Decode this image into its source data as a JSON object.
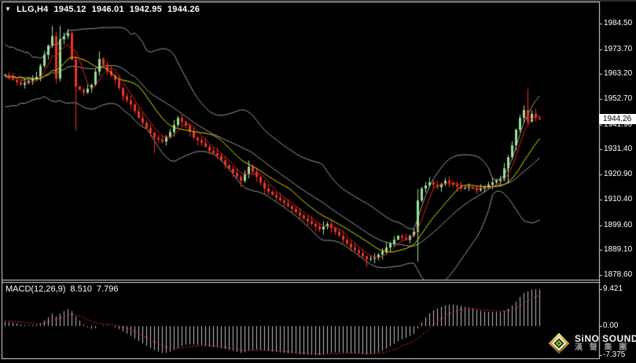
{
  "header": {
    "dropdown_icon": "▼",
    "symbol": "LLG,H4",
    "open": "1945.12",
    "high": "1946.01",
    "low": "1942.95",
    "close": "1944.26"
  },
  "price_axis": {
    "labels": [
      "1984.50",
      "1973.70",
      "1963.20",
      "1952.70",
      "1941.90",
      "1931.40",
      "1920.90",
      "1910.40",
      "1899.60",
      "1889.10",
      "1878.60"
    ],
    "current_price": "1944.26"
  },
  "macd_pane": {
    "indicator_label": "MACD(12,26,9)",
    "macd_value": "8.510",
    "signal_value": "7.796",
    "axis_labels": [
      "9.421",
      "0.00",
      "-7.375"
    ]
  },
  "watermark": {
    "brand": "SiNO SOUND",
    "brand_cn": "漢 聲 集 團"
  },
  "colors": {
    "background": "#000000",
    "frame": "#e0e0e0",
    "top_strip": "#2f2f2f",
    "text": "#ffffff",
    "bull": "#98e098",
    "bear": "#ef3322",
    "band": "#9a9a9a",
    "ma_fast": "#e02020",
    "ma_slow": "#e6dc00",
    "hist": "#bebebe",
    "signal": "#ff2a2a",
    "price_box_bg": "#ffffff",
    "price_box_text": "#000000"
  },
  "chart_data": {
    "type": "candlestick",
    "title": "LLG,H4",
    "legend_position": "none",
    "grid": false,
    "ohlc_header": {
      "open": 1945.12,
      "high": 1946.01,
      "low": 1942.95,
      "close": 1944.26
    },
    "price_ticks": [
      1984.5,
      1973.7,
      1963.2,
      1952.7,
      1941.9,
      1931.4,
      1920.9,
      1910.4,
      1899.6,
      1889.1,
      1878.6
    ],
    "price_range": [
      1878.6,
      1984.5
    ],
    "current_price": 1944.26,
    "indicators": {
      "bollinger": {
        "period": 20,
        "deviation": 2,
        "color": "#9a9a9a"
      },
      "ma_fast": {
        "period": 5,
        "color": "#e02020"
      },
      "ma_slow": {
        "period": 12,
        "color": "#e6dc00"
      },
      "macd": {
        "fast": 12,
        "slow": 26,
        "signal": 9,
        "macd_last": 8.51,
        "signal_last": 7.796,
        "axis_ticks": [
          9.421,
          0.0,
          -7.375
        ]
      }
    },
    "pre_history": [
      1955,
      1972,
      1958,
      1970,
      1952,
      1968,
      1955,
      1973,
      1957,
      1969,
      1953,
      1966,
      1958,
      1971,
      1954,
      1967,
      1960,
      1965,
      1958,
      1963
    ],
    "closes": [
      1963.0,
      1961.9,
      1960.8,
      1959.8,
      1958.7,
      1959.5,
      1960.4,
      1961.2,
      1962.0,
      1966.7,
      1971.3,
      1975.3,
      1979.2,
      1961.3,
      1977.9,
      1979.2,
      1980.5,
      1969.3,
      1958.0,
      1956.7,
      1955.4,
      1957.1,
      1958.7,
      1964.2,
      1969.6,
      1967.1,
      1964.6,
      1962.7,
      1960.7,
      1957.4,
      1954.0,
      1952.2,
      1950.4,
      1947.6,
      1944.8,
      1942.7,
      1940.5,
      1938.5,
      1936.5,
      1935.7,
      1934.8,
      1936.8,
      1938.8,
      1941.8,
      1944.8,
      1943.2,
      1941.5,
      1939.0,
      1936.5,
      1935.4,
      1934.2,
      1932.6,
      1930.9,
      1929.9,
      1928.9,
      1926.9,
      1924.9,
      1923.3,
      1921.6,
      1920.0,
      1918.3,
      1921.3,
      1924.2,
      1922.1,
      1919.9,
      1917.5,
      1915.0,
      1913.7,
      1912.3,
      1911.2,
      1910.0,
      1908.9,
      1907.7,
      1906.4,
      1905.0,
      1903.7,
      1902.4,
      1901.3,
      1900.1,
      1899.0,
      1897.8,
      1899.0,
      1900.1,
      1898.5,
      1896.8,
      1895.1,
      1893.4,
      1891.8,
      1890.1,
      1889.0,
      1887.8,
      1886.5,
      1885.2,
      1885.5,
      1885.8,
      1887.2,
      1888.5,
      1890.2,
      1891.8,
      1893.5,
      1895.1,
      1894.3,
      1893.4,
      1895.1,
      1896.8,
      1910.0,
      1915.0,
      1916.3,
      1917.6,
      1916.6,
      1915.6,
      1917.0,
      1918.3,
      1917.5,
      1916.6,
      1915.8,
      1915.0,
      1915.3,
      1915.6,
      1915.0,
      1914.3,
      1915.0,
      1915.6,
      1916.6,
      1917.6,
      1918.3,
      1918.9,
      1923.5,
      1928.2,
      1933.2,
      1939.8,
      1944.8,
      1948.1,
      1943.2,
      1946.5,
      1944.8,
      1944.26
    ],
    "wick_overrides": {
      "12": {
        "high": 1983.5
      },
      "14": {
        "high": 1983.5
      },
      "16": {
        "high": 1982.3
      },
      "18": {
        "low": 1939.5
      },
      "24": {
        "high": 1972.8
      },
      "38": {
        "low": 1930.0
      },
      "60": {
        "low": 1915.6
      },
      "62": {
        "high": 1926.8
      },
      "92": {
        "low": 1881.9
      },
      "105": {
        "high": 1914.8,
        "low": 1884.2
      },
      "128": {
        "high": 1929.2,
        "low": 1917.3
      },
      "133": {
        "high": 1957.0
      }
    }
  }
}
